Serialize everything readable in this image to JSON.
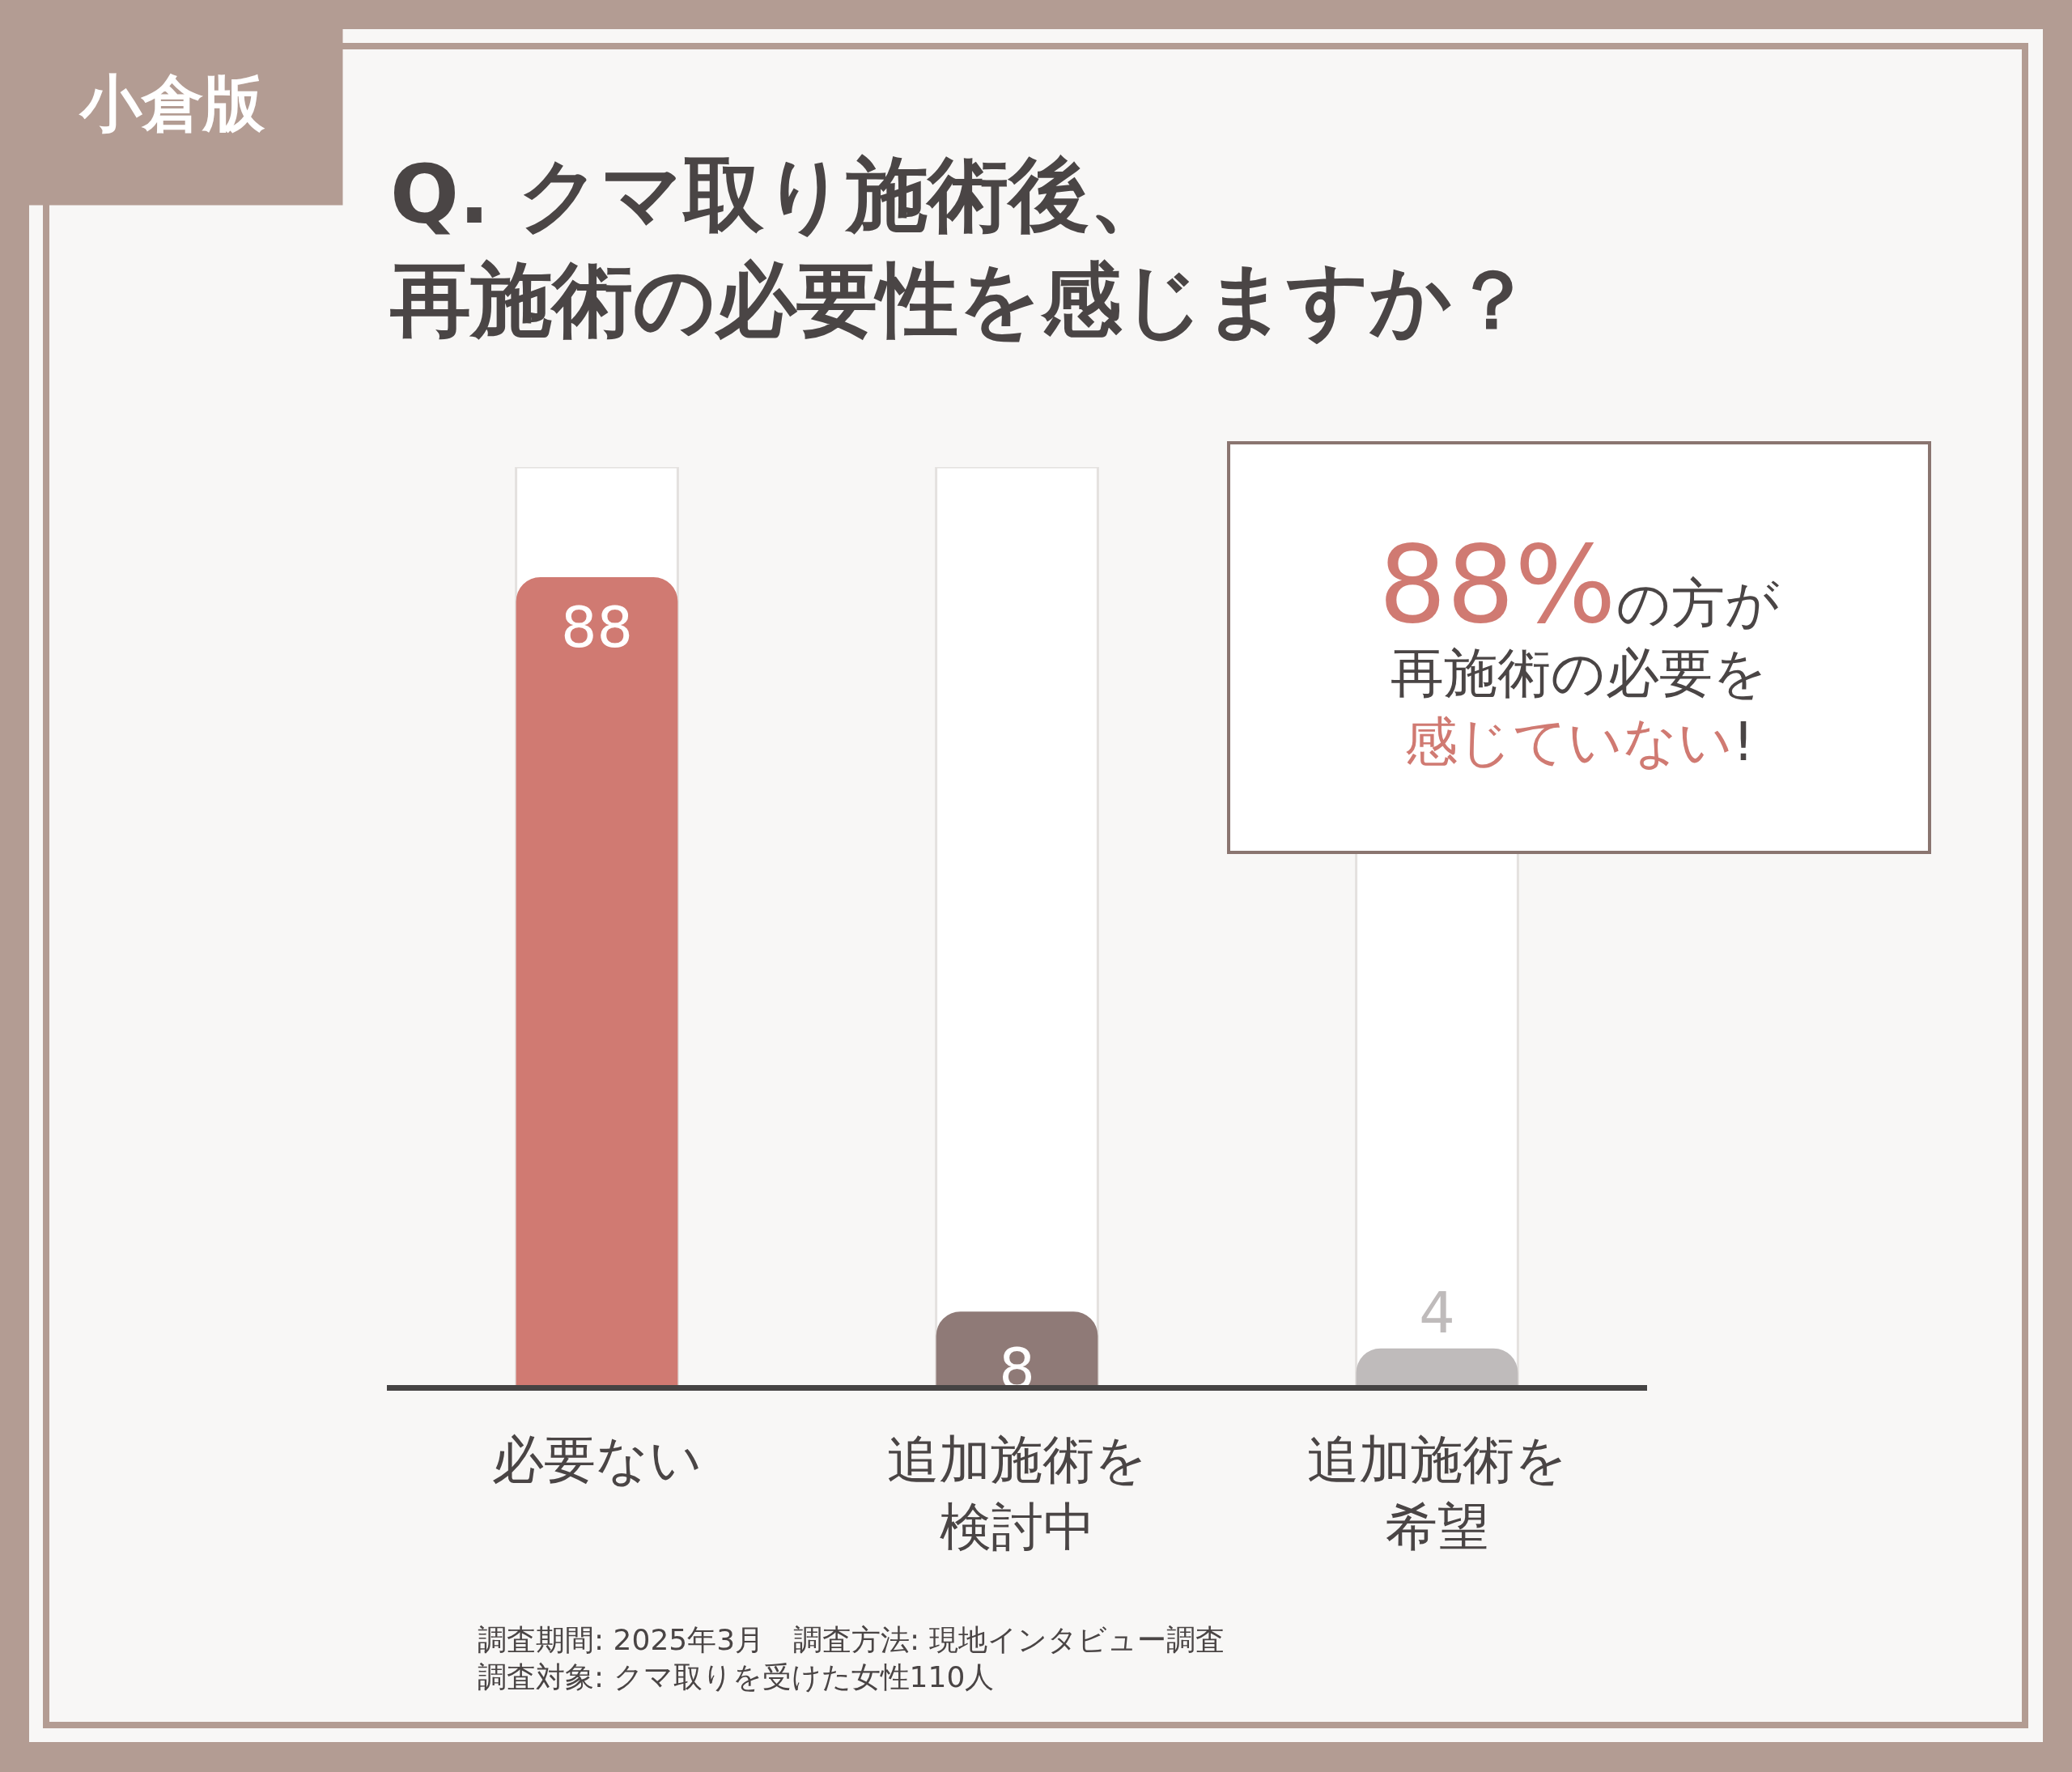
{
  "chart_data": {
    "type": "bar",
    "title": "Q. クマ取り施術後、再施術の必要性を感じますか？",
    "categories": [
      "必要ない",
      "追加施術を検討中",
      "追加施術を希望"
    ],
    "values": [
      88,
      8,
      4
    ],
    "colors": [
      "#d07a72",
      "#8f7a77",
      "#bfbbbb"
    ],
    "data_labels": true,
    "ylim": [
      0,
      100
    ],
    "tick_labels": "x",
    "annotations": [
      "小倉版",
      "88%の方が再施術の必要を感じていない!",
      "調査期間: 2025年3月　調査方法: 現地インタビュー調査",
      "調査対象: クマ取りを受けた女性110人"
    ]
  }
}
